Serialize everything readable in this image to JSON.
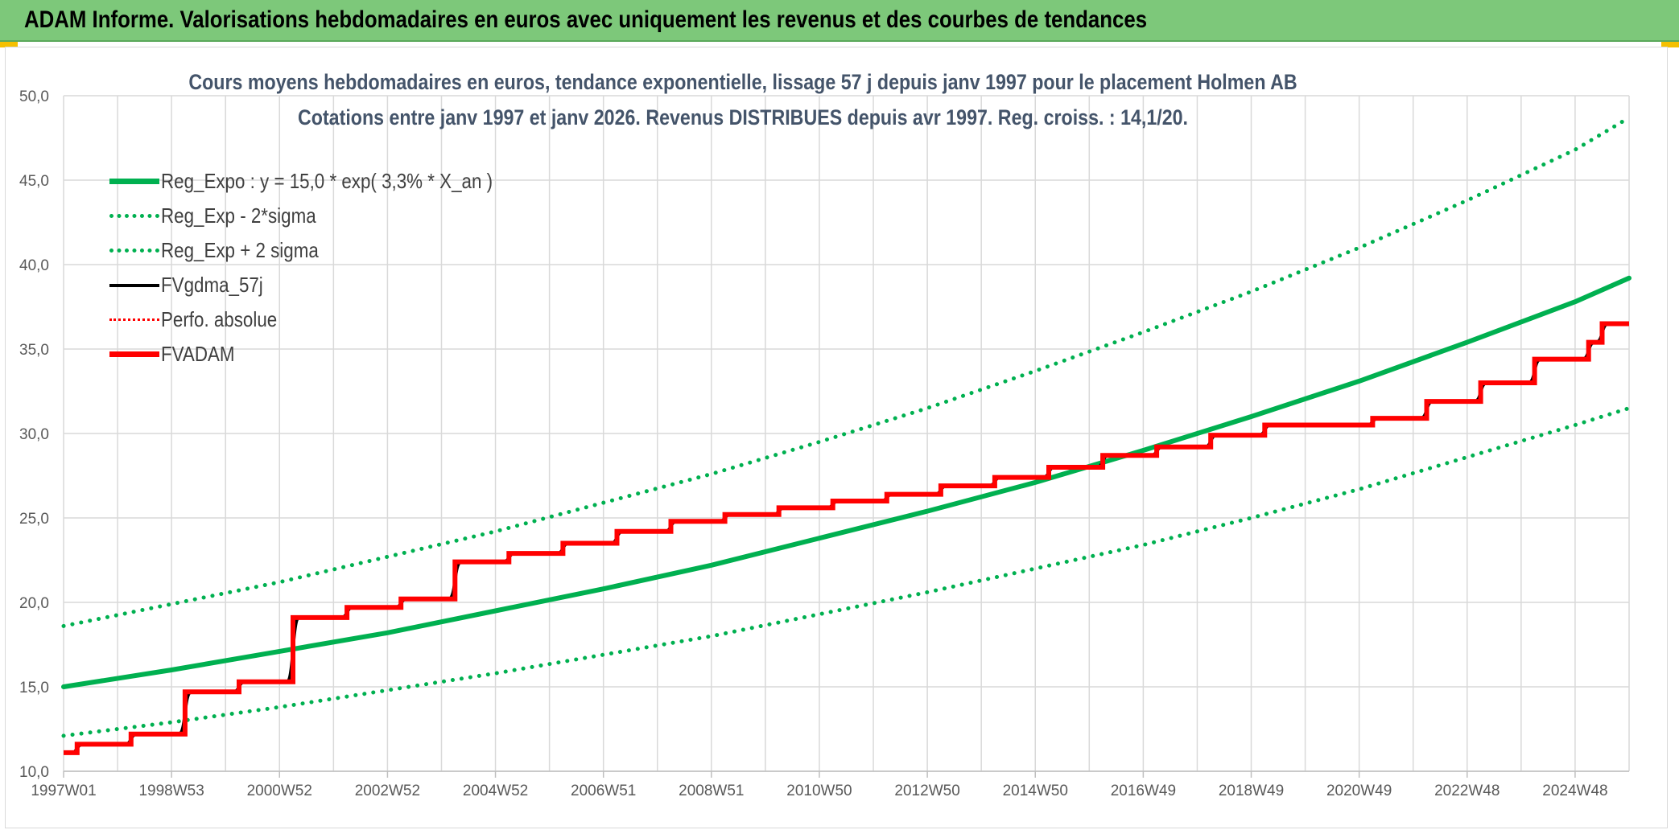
{
  "header": {
    "title": "ADAM Informe. Valorisations hebdomadaires en euros avec uniquement les revenus et des courbes de tendances"
  },
  "colors": {
    "banner": "#7dc87a",
    "green": "#00b050",
    "black": "#000000",
    "red": "#ff0000",
    "grid": "#d9d9d9",
    "title_text": "#44546a"
  },
  "chart_data": {
    "type": "line",
    "title": "Cours moyens hebdomadaires en euros, tendance exponentielle, lissage 57 j depuis janv 1997 pour le placement Holmen AB",
    "subtitle": "Cotations entre janv 1997 et janv 2026. Revenus DISTRIBUES depuis avr 1997. Reg. croiss. : 14,1/20.",
    "xlabel": "",
    "ylabel": "",
    "ylim": [
      10,
      50
    ],
    "yticks": [
      "10,0",
      "15,0",
      "20,0",
      "25,0",
      "30,0",
      "35,0",
      "40,0",
      "45,0",
      "50,0"
    ],
    "xlim": [
      1997.0,
      2026.0
    ],
    "xticks": [
      {
        "label": "1997W01",
        "x": 1997.0
      },
      {
        "label": "1998W53",
        "x": 1999.0
      },
      {
        "label": "2000W52",
        "x": 2001.0
      },
      {
        "label": "2002W52",
        "x": 2003.0
      },
      {
        "label": "2004W52",
        "x": 2005.0
      },
      {
        "label": "2006W51",
        "x": 2007.0
      },
      {
        "label": "2008W51",
        "x": 2009.0
      },
      {
        "label": "2010W50",
        "x": 2011.0
      },
      {
        "label": "2012W50",
        "x": 2013.0
      },
      {
        "label": "2014W50",
        "x": 2015.0
      },
      {
        "label": "2016W49",
        "x": 2017.0
      },
      {
        "label": "2018W49",
        "x": 2019.0
      },
      {
        "label": "2020W49",
        "x": 2021.0
      },
      {
        "label": "2022W48",
        "x": 2023.0
      },
      {
        "label": "2024W48",
        "x": 2025.0
      }
    ],
    "grid": true,
    "legend_position": "top-left",
    "series": [
      {
        "name": "Reg_Expo : y = 15,0 * exp( 3,3% *  X_an )",
        "style": "solid",
        "color": "#00b050",
        "points": [
          [
            1997.0,
            15.0
          ],
          [
            1999.0,
            16.0
          ],
          [
            2001.0,
            17.1
          ],
          [
            2003.0,
            18.2
          ],
          [
            2005.0,
            19.5
          ],
          [
            2007.0,
            20.8
          ],
          [
            2009.0,
            22.2
          ],
          [
            2011.0,
            23.8
          ],
          [
            2013.0,
            25.4
          ],
          [
            2015.0,
            27.1
          ],
          [
            2017.0,
            29.0
          ],
          [
            2019.0,
            31.0
          ],
          [
            2021.0,
            33.1
          ],
          [
            2023.0,
            35.4
          ],
          [
            2025.0,
            37.8
          ],
          [
            2026.0,
            39.2
          ]
        ]
      },
      {
        "name": "Reg_Exp - 2*sigma",
        "style": "dotted",
        "color": "#00b050",
        "points": [
          [
            1997.0,
            12.1
          ],
          [
            1999.0,
            12.9
          ],
          [
            2001.0,
            13.8
          ],
          [
            2003.0,
            14.8
          ],
          [
            2005.0,
            15.8
          ],
          [
            2007.0,
            16.9
          ],
          [
            2009.0,
            18.0
          ],
          [
            2011.0,
            19.3
          ],
          [
            2013.0,
            20.6
          ],
          [
            2015.0,
            22.0
          ],
          [
            2017.0,
            23.4
          ],
          [
            2019.0,
            25.0
          ],
          [
            2021.0,
            26.7
          ],
          [
            2023.0,
            28.6
          ],
          [
            2025.0,
            30.5
          ],
          [
            2026.0,
            31.5
          ]
        ]
      },
      {
        "name": "Reg_Exp + 2 sigma",
        "style": "dotted",
        "color": "#00b050",
        "points": [
          [
            1997.0,
            18.6
          ],
          [
            1999.0,
            19.9
          ],
          [
            2001.0,
            21.2
          ],
          [
            2003.0,
            22.7
          ],
          [
            2005.0,
            24.2
          ],
          [
            2007.0,
            25.9
          ],
          [
            2009.0,
            27.6
          ],
          [
            2011.0,
            29.5
          ],
          [
            2013.0,
            31.5
          ],
          [
            2015.0,
            33.7
          ],
          [
            2017.0,
            36.0
          ],
          [
            2019.0,
            38.4
          ],
          [
            2021.0,
            41.0
          ],
          [
            2023.0,
            43.8
          ],
          [
            2025.0,
            46.8
          ],
          [
            2026.0,
            48.7
          ]
        ]
      },
      {
        "name": "FVgdma_57j",
        "style": "solid-thin",
        "color": "#000000",
        "type": "step",
        "steps": [
          [
            1997.0,
            11.1
          ],
          [
            1997.25,
            11.6
          ],
          [
            1998.25,
            12.2
          ],
          [
            1999.25,
            14.7
          ],
          [
            2000.25,
            15.3
          ],
          [
            2001.25,
            19.1
          ],
          [
            2002.25,
            19.7
          ],
          [
            2003.25,
            20.2
          ],
          [
            2004.25,
            22.4
          ],
          [
            2005.25,
            22.9
          ],
          [
            2006.25,
            23.5
          ],
          [
            2007.25,
            24.2
          ],
          [
            2008.25,
            24.8
          ],
          [
            2009.25,
            25.2
          ],
          [
            2010.25,
            25.6
          ],
          [
            2011.25,
            26.0
          ],
          [
            2012.25,
            26.4
          ],
          [
            2013.25,
            26.9
          ],
          [
            2014.25,
            27.4
          ],
          [
            2015.25,
            28.0
          ],
          [
            2016.25,
            28.7
          ],
          [
            2017.25,
            29.2
          ],
          [
            2018.25,
            29.9
          ],
          [
            2019.25,
            30.5
          ],
          [
            2020.25,
            30.5
          ],
          [
            2021.25,
            30.9
          ],
          [
            2022.25,
            31.9
          ],
          [
            2023.25,
            33.0
          ],
          [
            2024.25,
            34.4
          ],
          [
            2025.25,
            35.4
          ],
          [
            2025.5,
            36.5
          ],
          [
            2026.0,
            36.5
          ]
        ]
      },
      {
        "name": "Perfo. absolue",
        "style": "dotted",
        "color": "#ff0000"
      },
      {
        "name": "FVADAM",
        "style": "solid-thick",
        "color": "#ff0000",
        "type": "step",
        "steps": [
          [
            1997.0,
            11.1
          ],
          [
            1997.25,
            11.6
          ],
          [
            1998.25,
            12.2
          ],
          [
            1999.25,
            14.7
          ],
          [
            2000.25,
            15.3
          ],
          [
            2001.25,
            19.1
          ],
          [
            2002.25,
            19.7
          ],
          [
            2003.25,
            20.2
          ],
          [
            2004.25,
            22.4
          ],
          [
            2005.25,
            22.9
          ],
          [
            2006.25,
            23.5
          ],
          [
            2007.25,
            24.2
          ],
          [
            2008.25,
            24.8
          ],
          [
            2009.25,
            25.2
          ],
          [
            2010.25,
            25.6
          ],
          [
            2011.25,
            26.0
          ],
          [
            2012.25,
            26.4
          ],
          [
            2013.25,
            26.9
          ],
          [
            2014.25,
            27.4
          ],
          [
            2015.25,
            28.0
          ],
          [
            2016.25,
            28.7
          ],
          [
            2017.25,
            29.2
          ],
          [
            2018.25,
            29.9
          ],
          [
            2019.25,
            30.5
          ],
          [
            2020.25,
            30.5
          ],
          [
            2021.25,
            30.9
          ],
          [
            2022.25,
            31.9
          ],
          [
            2023.25,
            33.0
          ],
          [
            2024.25,
            34.4
          ],
          [
            2025.25,
            35.4
          ],
          [
            2025.5,
            36.5
          ],
          [
            2026.0,
            36.5
          ]
        ]
      }
    ]
  }
}
